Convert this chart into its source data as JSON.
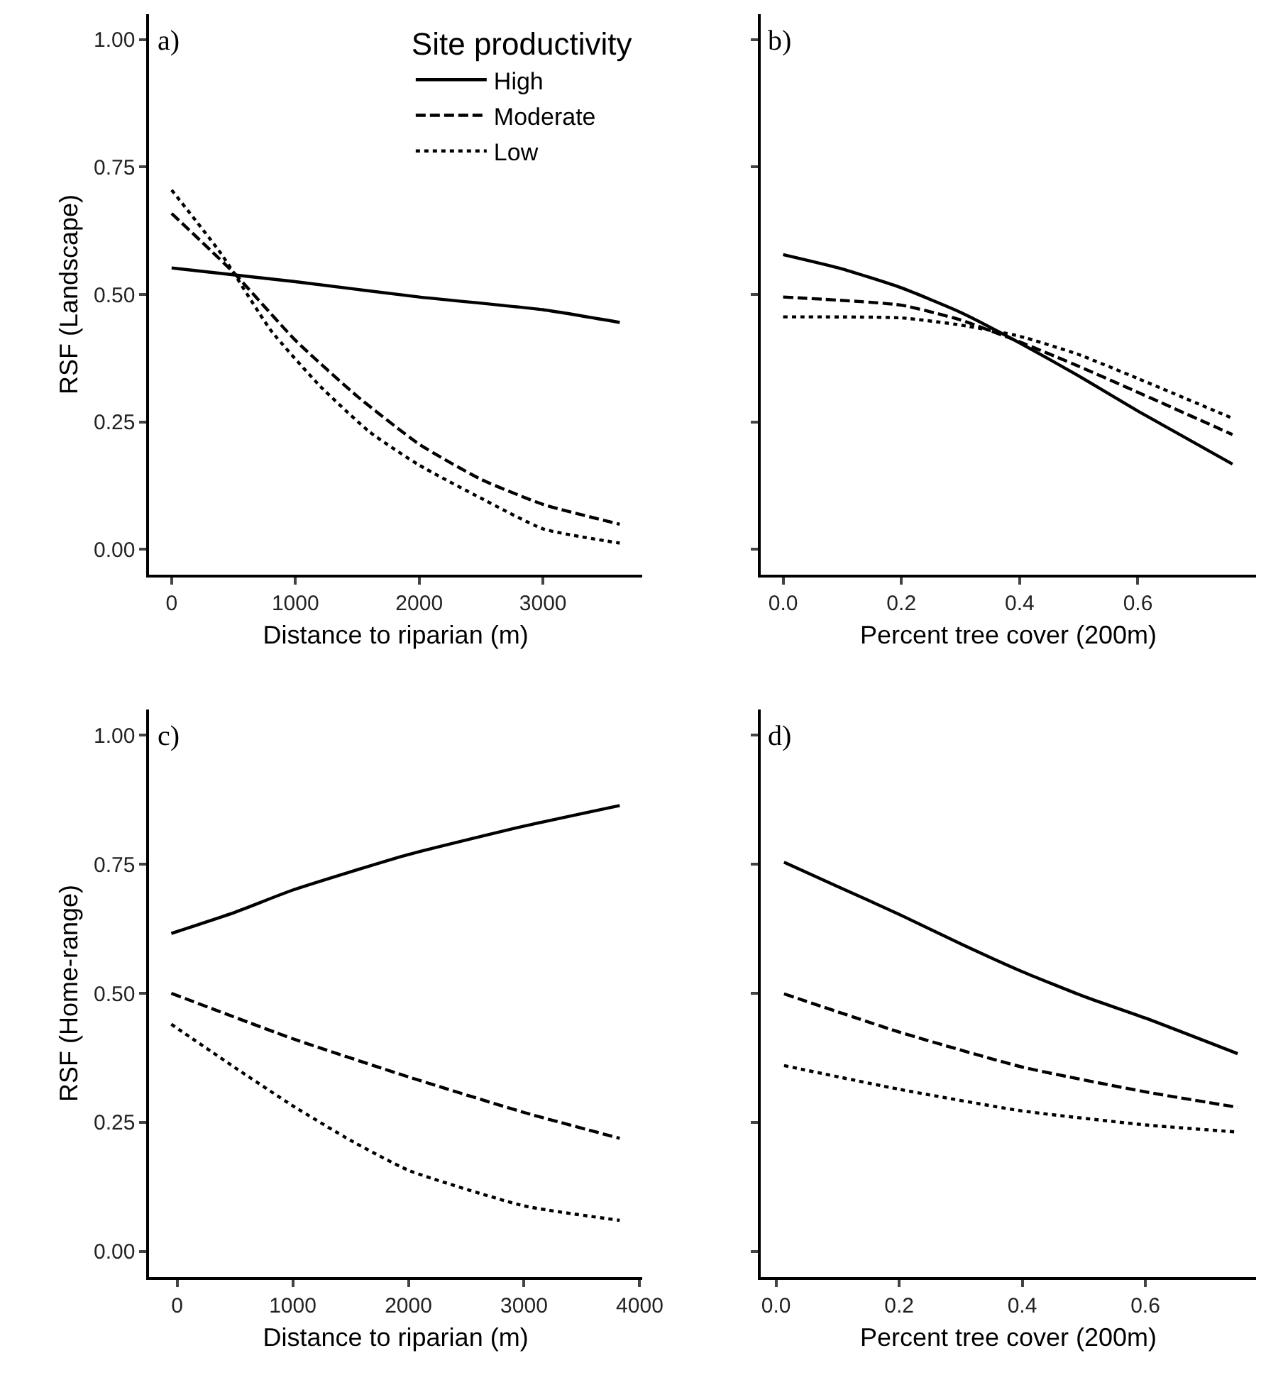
{
  "chart_data": [
    {
      "type": "line",
      "xlabel": "Distance to riparian (m)",
      "ylabel": "RSF (Landscape)",
      "annotations": [
        "a)"
      ],
      "legend": "top right",
      "legend_title": "Site productivity",
      "xlim": [
        -180,
        3800
      ],
      "xticks": [
        0,
        1000,
        2000,
        3000
      ],
      "ylim": [
        -0.05,
        1.05
      ],
      "yticks": [
        {
          "value": 0,
          "label": "0.00"
        },
        {
          "value": 0.25,
          "label": "0.25"
        },
        {
          "value": 0.5,
          "label": "0.50"
        },
        {
          "value": 0.75,
          "label": "0.75"
        },
        {
          "value": 1,
          "label": "1.00"
        }
      ],
      "series": [
        {
          "name": "High",
          "color": "#000000",
          "line_style": "solid",
          "x": [
            0,
            1000,
            2000,
            3000,
            3620
          ],
          "values": [
            0.552,
            0.525,
            0.495,
            0.47,
            0.445
          ]
        },
        {
          "name": "Moderate",
          "color": "#000000",
          "line_style": "dashed",
          "x": [
            0,
            500,
            1000,
            1500,
            2000,
            2500,
            3000,
            3620
          ],
          "values": [
            0.659,
            0.543,
            0.41,
            0.3,
            0.206,
            0.137,
            0.088,
            0.049
          ]
        },
        {
          "name": "Low",
          "color": "#000000",
          "line_style": "dotted",
          "x": [
            0,
            400,
            800,
            1200,
            1600,
            2000,
            2500,
            3000,
            3620
          ],
          "values": [
            0.705,
            0.58,
            0.43,
            0.32,
            0.23,
            0.165,
            0.1,
            0.04,
            0.012
          ]
        }
      ]
    },
    {
      "type": "line",
      "xlabel": "Percent tree cover (200m)",
      "annotations": [
        "b)"
      ],
      "tick_labels": "x",
      "xlim": [
        -0.038,
        0.8
      ],
      "xticks": [
        {
          "value": 0,
          "label": "0.0"
        },
        0.2,
        0.4,
        0.6
      ],
      "ylim": [
        -0.05,
        1.05
      ],
      "yticks": [
        {
          "value": 0,
          "label": null
        },
        {
          "value": 0.25,
          "label": null
        },
        {
          "value": 0.5,
          "label": null
        },
        {
          "value": 0.75,
          "label": null
        },
        {
          "value": 1,
          "label": null
        }
      ],
      "series": [
        {
          "color": "#000000",
          "line_style": "solid",
          "x": [
            0,
            0.1,
            0.2,
            0.3,
            0.4,
            0.5,
            0.6,
            0.76
          ],
          "values": [
            0.578,
            0.55,
            0.513,
            0.465,
            0.405,
            0.34,
            0.271,
            0.167
          ]
        },
        {
          "color": "#000000",
          "line_style": "dashed",
          "x": [
            0,
            0.2,
            0.3,
            0.4,
            0.5,
            0.6,
            0.76
          ],
          "values": [
            0.495,
            0.479,
            0.45,
            0.407,
            0.359,
            0.308,
            0.225
          ]
        },
        {
          "color": "#000000",
          "line_style": "dotted",
          "x": [
            0,
            0.2,
            0.3,
            0.4,
            0.5,
            0.6,
            0.76
          ],
          "values": [
            0.456,
            0.454,
            0.44,
            0.418,
            0.382,
            0.335,
            0.257
          ]
        }
      ]
    },
    {
      "type": "line",
      "xlabel": "Distance to riparian (m)",
      "ylabel": "RSF (Home-range)",
      "annotations": [
        "c)"
      ],
      "xlim": [
        -240,
        4020
      ],
      "xticks": [
        0,
        1000,
        2000,
        3000,
        4000
      ],
      "ylim": [
        -0.05,
        1.05
      ],
      "yticks": [
        {
          "value": 0,
          "label": "0.00"
        },
        {
          "value": 0.25,
          "label": "0.25"
        },
        {
          "value": 0.5,
          "label": "0.50"
        },
        {
          "value": 0.75,
          "label": "0.75"
        },
        {
          "value": 1,
          "label": "1.00"
        }
      ],
      "series": [
        {
          "color": "#000000",
          "line_style": "solid",
          "x": [
            -50,
            500,
            1000,
            2000,
            3000,
            3827
          ],
          "values": [
            0.616,
            0.657,
            0.7,
            0.769,
            0.824,
            0.864
          ]
        },
        {
          "color": "#000000",
          "line_style": "dashed",
          "x": [
            -50,
            1000,
            2000,
            3000,
            3827
          ],
          "values": [
            0.5,
            0.412,
            0.338,
            0.269,
            0.219
          ]
        },
        {
          "color": "#000000",
          "line_style": "dotted",
          "x": [
            -50,
            500,
            1000,
            1500,
            2000,
            3000,
            3827
          ],
          "values": [
            0.44,
            0.356,
            0.282,
            0.215,
            0.157,
            0.088,
            0.06
          ]
        }
      ]
    },
    {
      "type": "line",
      "xlabel": "Percent tree cover (200m)",
      "annotations": [
        "d)"
      ],
      "tick_labels": "x",
      "xlim": [
        -0.025,
        0.78
      ],
      "xticks": [
        {
          "value": 0,
          "label": "0.0"
        },
        0.2,
        0.4,
        0.6
      ],
      "ylim": [
        -0.05,
        1.05
      ],
      "yticks": [
        {
          "value": 0,
          "label": null
        },
        {
          "value": 0.25,
          "label": null
        },
        {
          "value": 0.5,
          "label": null
        },
        {
          "value": 0.75,
          "label": null
        },
        {
          "value": 1,
          "label": null
        }
      ],
      "series": [
        {
          "color": "#000000",
          "line_style": "solid",
          "x": [
            0.013,
            0.1,
            0.2,
            0.3,
            0.4,
            0.5,
            0.6,
            0.75
          ],
          "values": [
            0.754,
            0.707,
            0.653,
            0.596,
            0.542,
            0.494,
            0.452,
            0.383
          ]
        },
        {
          "color": "#000000",
          "line_style": "dashed",
          "x": [
            0.013,
            0.2,
            0.4,
            0.6,
            0.75
          ],
          "values": [
            0.499,
            0.425,
            0.357,
            0.309,
            0.279
          ]
        },
        {
          "color": "#000000",
          "line_style": "dotted",
          "x": [
            0.013,
            0.2,
            0.4,
            0.6,
            0.75
          ],
          "values": [
            0.36,
            0.314,
            0.272,
            0.245,
            0.231
          ]
        }
      ]
    }
  ]
}
